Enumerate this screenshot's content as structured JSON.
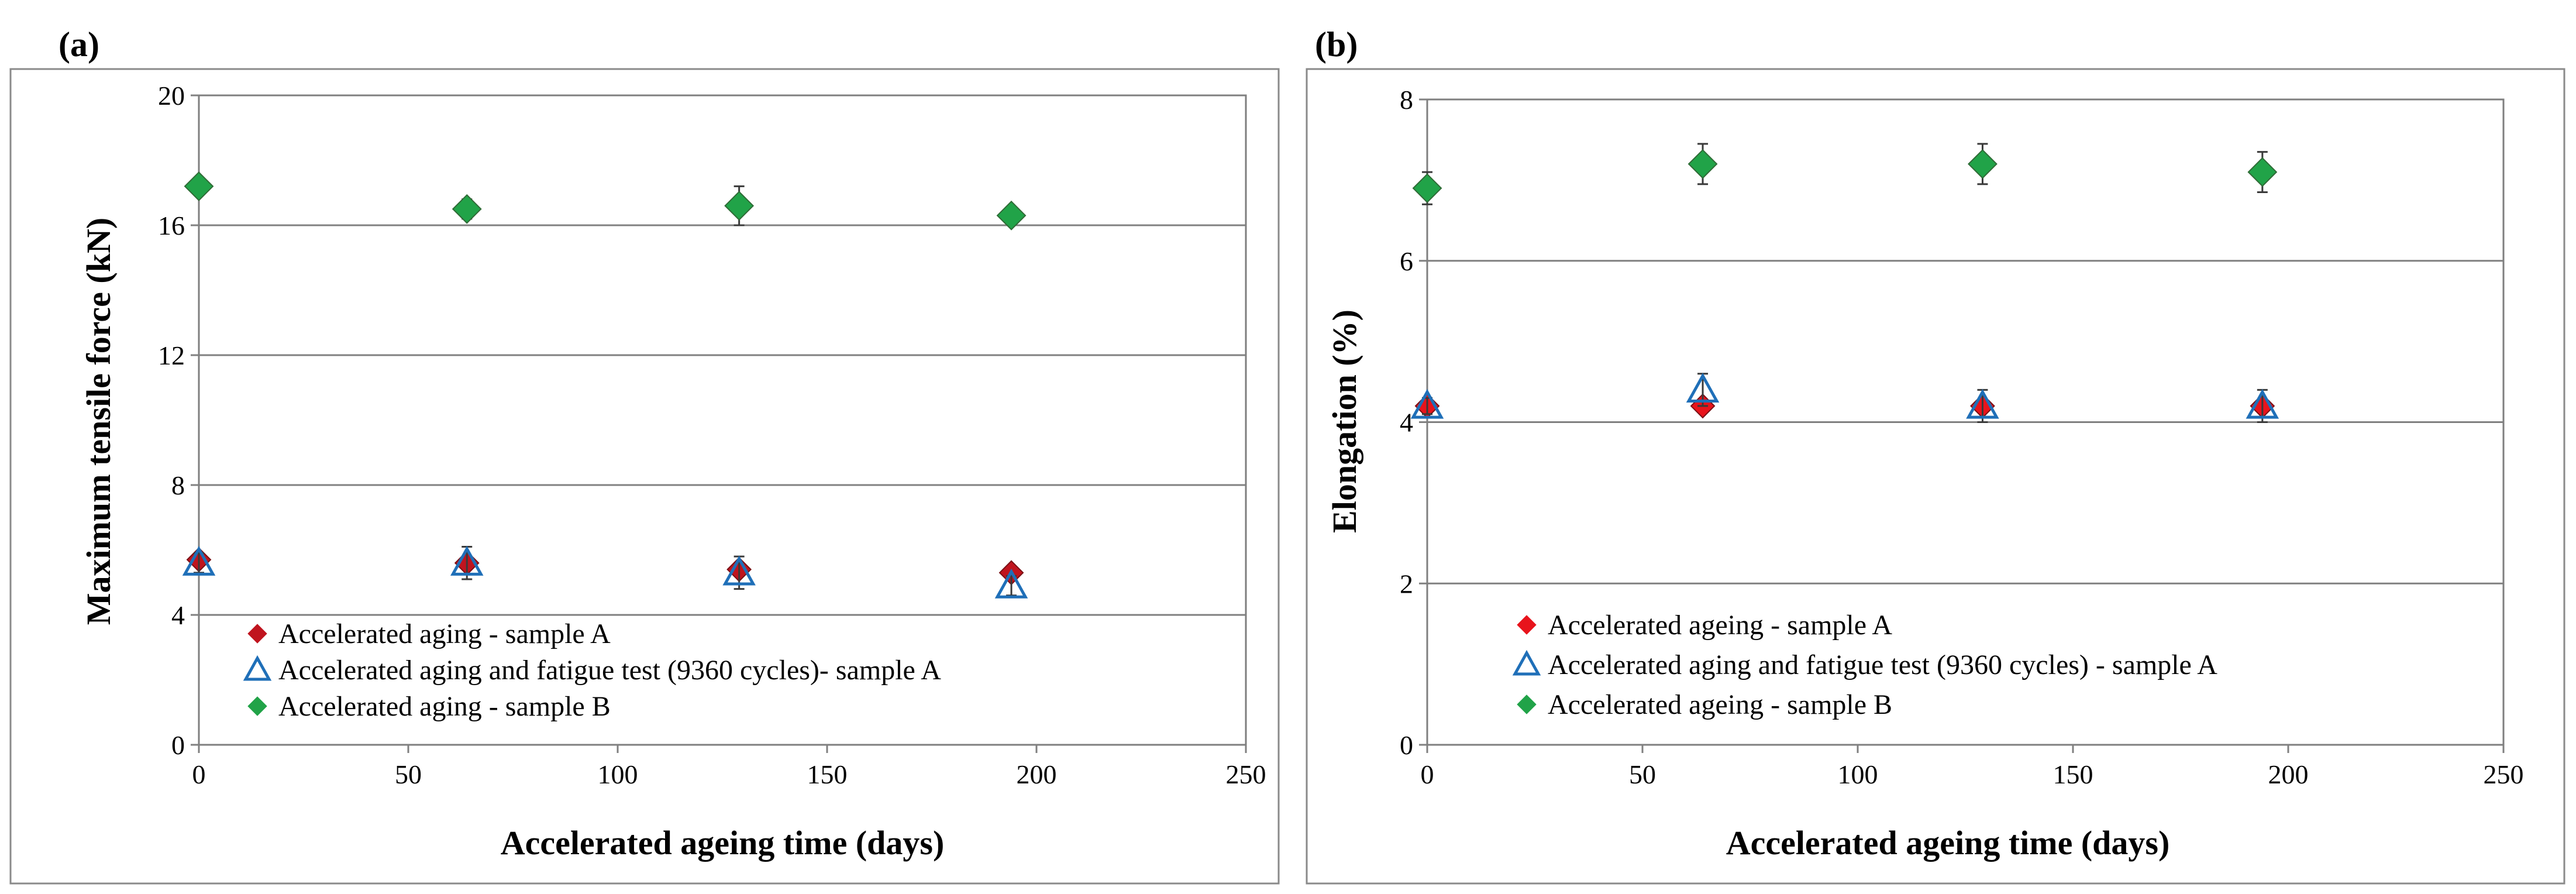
{
  "chart_data": [
    {
      "type": "scatter",
      "panel_label": "(a)",
      "title": "",
      "xlabel": "Accelerated ageing time (days)",
      "ylabel": "Maximum tensile force (kN)",
      "xlim": [
        0,
        250
      ],
      "ylim": [
        0,
        20
      ],
      "xticks": [
        0,
        50,
        100,
        150,
        200,
        250
      ],
      "yticks": [
        0,
        4,
        8,
        12,
        16,
        20
      ],
      "xtick_labels": [
        "0",
        "50",
        "100",
        "150",
        "200",
        "250"
      ],
      "ytick_labels": [
        "0",
        "4",
        "8",
        "12",
        "16",
        "20"
      ],
      "grid": "horizontal",
      "legend_position": "lower-left",
      "series": [
        {
          "name": "Accelerated aging - sample A",
          "marker": "diamond",
          "color": "#C0141E",
          "x": [
            0,
            64,
            129,
            194
          ],
          "y": [
            5.7,
            5.6,
            5.4,
            5.3
          ],
          "err": [
            0,
            0,
            0,
            0
          ]
        },
        {
          "name": "Accelerated aging and fatigue test (9360 cycles)-  sample A",
          "marker": "triangle-open",
          "color": "#1F6FB8",
          "x": [
            0,
            64,
            129,
            194
          ],
          "y": [
            5.6,
            5.6,
            5.3,
            4.9
          ],
          "err": [
            0.3,
            0.5,
            0.5,
            0.3
          ]
        },
        {
          "name": "Accelerated aging - sample B",
          "marker": "diamond",
          "color": "#21A348",
          "x": [
            0,
            64,
            129,
            194
          ],
          "y": [
            17.2,
            16.5,
            16.6,
            16.3
          ],
          "err": [
            0.1,
            0.3,
            0.6,
            0.1
          ]
        }
      ]
    },
    {
      "type": "scatter",
      "panel_label": "(b)",
      "title": "",
      "xlabel": "Accelerated ageing time (days)",
      "ylabel": "Elongation (%)",
      "xlim": [
        0,
        250
      ],
      "ylim": [
        0,
        8
      ],
      "xticks": [
        0,
        50,
        100,
        150,
        200,
        250
      ],
      "yticks": [
        0,
        2,
        4,
        6,
        8
      ],
      "xtick_labels": [
        "0",
        "50",
        "100",
        "150",
        "200",
        "250"
      ],
      "ytick_labels": [
        "0",
        "2",
        "4",
        "6",
        "8"
      ],
      "grid": "horizontal",
      "legend_position": "lower-left",
      "series": [
        {
          "name": "Accelerated ageing - sample A",
          "marker": "diamond",
          "color": "#E8141C",
          "x": [
            0,
            64,
            129,
            194
          ],
          "y": [
            4.2,
            4.2,
            4.2,
            4.2
          ],
          "err": [
            0,
            0,
            0,
            0
          ]
        },
        {
          "name": "Accelerated aging and fatigue test (9360 cycles) - sample A",
          "marker": "triangle-open",
          "color": "#1F6FB8",
          "x": [
            0,
            64,
            129,
            194
          ],
          "y": [
            4.2,
            4.4,
            4.2,
            4.2
          ],
          "err": [
            0.1,
            0.2,
            0.2,
            0.2
          ]
        },
        {
          "name": "Accelerated ageing - sample B",
          "marker": "diamond",
          "color": "#21A348",
          "x": [
            0,
            64,
            129,
            194
          ],
          "y": [
            6.9,
            7.2,
            7.2,
            7.1
          ],
          "err": [
            0.2,
            0.25,
            0.25,
            0.25
          ]
        }
      ]
    }
  ]
}
